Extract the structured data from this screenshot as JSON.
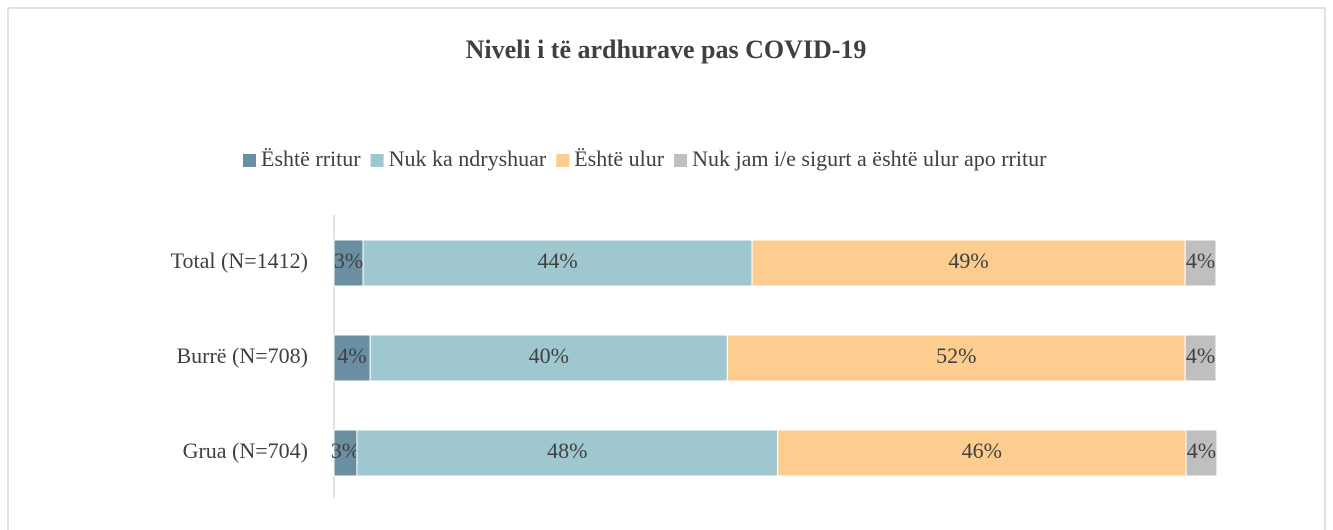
{
  "chart_data": {
    "type": "stacked-bar-horizontal",
    "title": "Niveli i të ardhurave pas COVID-19",
    "categories": [
      "Total (N=1412)",
      "Burrë (N=708)",
      "Grua (N=704)"
    ],
    "series": [
      {
        "name": "Është rritur",
        "color": "#6a8fa3",
        "values": [
          3.3,
          4.1,
          2.6
        ],
        "value_labels": [
          "3%",
          "4%",
          "3%"
        ]
      },
      {
        "name": "Nuk ka ndryshuar",
        "color": "#9fc7d0",
        "values": [
          44.1,
          40.5,
          47.7
        ],
        "value_labels": [
          "44%",
          "40%",
          "48%"
        ]
      },
      {
        "name": "Është ulur",
        "color": "#fdcc8f",
        "values": [
          49.1,
          51.9,
          46.3
        ],
        "value_labels": [
          "49%",
          "52%",
          "46%"
        ]
      },
      {
        "name": "Nuk jam i/e sigurt a është ulur apo rritur",
        "color": "#bfbfbf",
        "values": [
          3.5,
          3.5,
          3.5
        ],
        "value_labels": [
          "4%",
          "4%",
          "4%"
        ]
      }
    ],
    "xlim": [
      0,
      100
    ],
    "legend": "top"
  }
}
